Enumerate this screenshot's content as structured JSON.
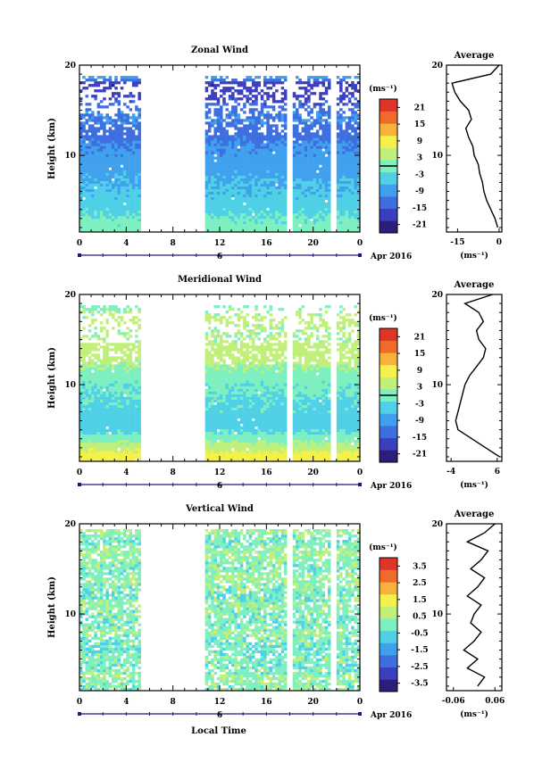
{
  "chart_data": [
    {
      "type": "heatmap",
      "title": "Zonal Wind",
      "ylabel": "Height (km)",
      "xticks": [
        "0",
        "4",
        "8",
        "12",
        "16",
        "20",
        "0"
      ],
      "yticks": [
        "10",
        "20"
      ],
      "xlim": [
        0,
        24
      ],
      "ylim": [
        1.5,
        20
      ],
      "date_label": "6",
      "date_suffix": "Apr 2016",
      "colorbar": {
        "unit_label": "(ms⁻¹)",
        "ticks": [
          "21",
          "15",
          "9",
          "3",
          "-3",
          "-9",
          "-15",
          "-21"
        ],
        "range": [
          -24,
          24
        ],
        "zero_line": 0
      },
      "data_gaps_hours": [
        [
          5.3,
          10.7
        ],
        [
          17.7,
          18.3
        ],
        [
          21.6,
          22.0
        ]
      ],
      "profile": {
        "title": "Average",
        "xticks": [
          "-15",
          "0"
        ],
        "xlim": [
          -19,
          1
        ],
        "xlabel": "(ms⁻¹)",
        "height_km": [
          2,
          3,
          4,
          5,
          6,
          7,
          8,
          9,
          10,
          11,
          12,
          13,
          14,
          15,
          16,
          17,
          18,
          19,
          20
        ],
        "value": [
          -0.5,
          -1.5,
          -3,
          -4.5,
          -5.5,
          -6,
          -7,
          -7.5,
          -9,
          -9.5,
          -11,
          -12,
          -10,
          -11,
          -14,
          -16,
          -17,
          -3,
          0
        ]
      }
    },
    {
      "type": "heatmap",
      "title": "Meridional Wind",
      "ylabel": "Height (km)",
      "xticks": [
        "0",
        "4",
        "8",
        "12",
        "16",
        "20",
        "0"
      ],
      "yticks": [
        "10",
        "20"
      ],
      "xlim": [
        0,
        24
      ],
      "ylim": [
        1.5,
        20
      ],
      "date_label": "6",
      "date_suffix": "Apr 2016",
      "colorbar": {
        "unit_label": "(ms⁻¹)",
        "ticks": [
          "21",
          "15",
          "9",
          "3",
          "-3",
          "-9",
          "-15",
          "-21"
        ],
        "range": [
          -24,
          24
        ],
        "zero_line": 0
      },
      "data_gaps_hours": [
        [
          5.3,
          10.7
        ],
        [
          17.7,
          18.3
        ],
        [
          21.6,
          22.0
        ]
      ],
      "profile": {
        "title": "Average",
        "xticks": [
          "-4",
          "6"
        ],
        "xlim": [
          -5,
          7
        ],
        "xlabel": "(ms⁻¹)",
        "height_km": [
          2,
          3,
          4,
          5,
          6,
          7,
          8,
          9,
          10,
          11,
          12,
          13,
          14,
          15,
          16,
          17,
          18,
          19,
          20
        ],
        "value": [
          6.5,
          3.5,
          0.5,
          -2.5,
          -3,
          -2.5,
          -2,
          -1.5,
          -1,
          0,
          1.5,
          3,
          3.5,
          2,
          1.5,
          3,
          2,
          -1,
          5
        ]
      }
    },
    {
      "type": "heatmap",
      "title": "Vertical Wind",
      "ylabel": "Height (km)",
      "xlabel": "Local Time",
      "xticks": [
        "0",
        "4",
        "8",
        "12",
        "16",
        "20",
        "0"
      ],
      "yticks": [
        "10",
        "20"
      ],
      "xlim": [
        0,
        24
      ],
      "ylim": [
        1.5,
        20
      ],
      "date_label": "6",
      "date_suffix": "Apr 2016",
      "colorbar": {
        "unit_label": "(ms⁻¹)",
        "ticks": [
          "3.5",
          "2.5",
          "1.5",
          "0.5",
          "-0.5",
          "-1.5",
          "-2.5",
          "-3.5"
        ],
        "range": [
          -4,
          4
        ]
      },
      "data_gaps_hours": [
        [
          5.3,
          10.7
        ],
        [
          17.7,
          18.3
        ],
        [
          21.6,
          22.0
        ]
      ],
      "profile": {
        "title": "Average",
        "xticks": [
          "-0.06",
          "0.06"
        ],
        "xlim": [
          -0.08,
          0.08
        ],
        "xlabel": "(ms⁻¹)",
        "height_km": [
          2,
          3,
          4,
          5,
          6,
          7,
          8,
          9,
          10,
          11,
          12,
          13,
          14,
          15,
          16,
          17,
          18,
          19,
          20
        ],
        "value": [
          0.01,
          0.03,
          -0.02,
          0.01,
          -0.03,
          0.0,
          0.02,
          -0.01,
          0.0,
          0.02,
          -0.02,
          0.01,
          0.03,
          -0.01,
          0.02,
          0.04,
          -0.02,
          0.03,
          0.06
        ]
      }
    }
  ],
  "colors": {
    "jet": [
      "#2a1f7a",
      "#3b3fbf",
      "#3f6ee0",
      "#3fa0ee",
      "#4fd0e6",
      "#7ef0c0",
      "#c0f07a",
      "#f5f04a",
      "#f8b23a",
      "#f06a2a",
      "#e03428"
    ],
    "accent_date_axis": "#1a1a7a"
  }
}
